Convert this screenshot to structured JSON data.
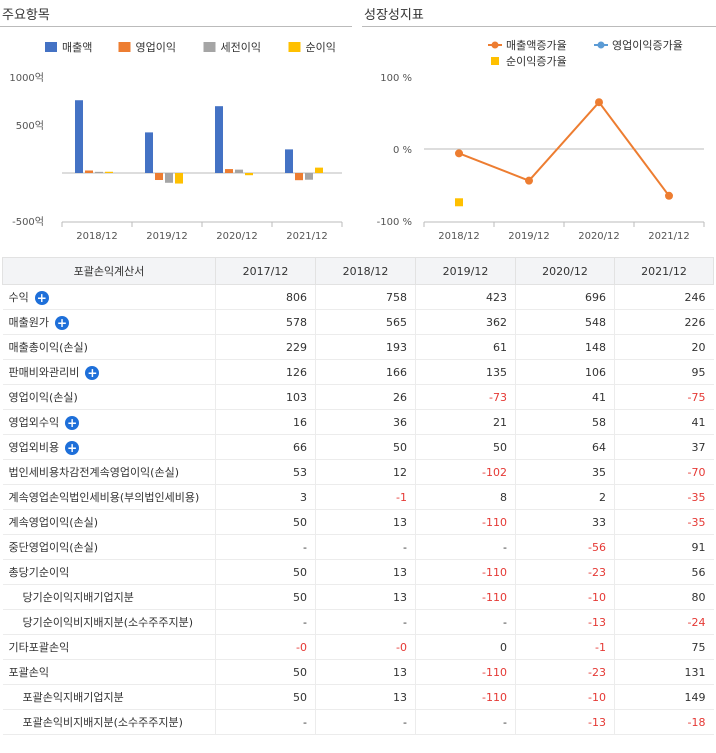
{
  "panels": {
    "left_title": "주요항목",
    "right_title": "성장성지표"
  },
  "chart_data": [
    {
      "type": "bar",
      "categories": [
        "2018/12",
        "2019/12",
        "2020/12",
        "2021/12"
      ],
      "series": [
        {
          "name": "매출액",
          "color": "#4472c4",
          "values": [
            758,
            423,
            696,
            246
          ]
        },
        {
          "name": "영업이익",
          "color": "#ed7d31",
          "values": [
            26,
            -73,
            41,
            -75
          ]
        },
        {
          "name": "세전이익",
          "color": "#a5a5a5",
          "values": [
            12,
            -102,
            35,
            -70
          ]
        },
        {
          "name": "순이익",
          "color": "#ffc000",
          "values": [
            13,
            -110,
            -23,
            56
          ]
        }
      ],
      "y_ticks": [
        "1000억",
        "500억",
        "-500억"
      ],
      "ylim": [
        -500,
        1000
      ]
    },
    {
      "type": "line",
      "categories": [
        "2018/12",
        "2019/12",
        "2020/12",
        "2021/12"
      ],
      "series": [
        {
          "name": "매출액증가율",
          "color": "#ed7d31",
          "values": [
            -6,
            -44,
            65,
            -65
          ]
        },
        {
          "name": "영업이익증가율",
          "color": "#5b9bd5",
          "values": [
            null,
            null,
            null,
            null
          ]
        },
        {
          "name": "순이익증가율",
          "color": "#ffc000",
          "values": [
            -74,
            null,
            null,
            null
          ]
        }
      ],
      "y_ticks": [
        "100 %",
        "0 %",
        "-100 %"
      ],
      "ylim": [
        -100,
        100
      ]
    }
  ],
  "table": {
    "header": [
      "포괄손익계산서",
      "2017/12",
      "2018/12",
      "2019/12",
      "2020/12",
      "2021/12"
    ],
    "rows": [
      {
        "label": "수익",
        "plus": true,
        "indent": false,
        "values": [
          "806",
          "758",
          "423",
          "696",
          "246"
        ]
      },
      {
        "label": "매출원가",
        "plus": true,
        "indent": false,
        "values": [
          "578",
          "565",
          "362",
          "548",
          "226"
        ]
      },
      {
        "label": "매출총이익(손실)",
        "plus": false,
        "indent": false,
        "values": [
          "229",
          "193",
          "61",
          "148",
          "20"
        ]
      },
      {
        "label": "판매비와관리비",
        "plus": true,
        "indent": false,
        "values": [
          "126",
          "166",
          "135",
          "106",
          "95"
        ]
      },
      {
        "label": "영업이익(손실)",
        "plus": false,
        "indent": false,
        "values": [
          "103",
          "26",
          "-73",
          "41",
          "-75"
        ]
      },
      {
        "label": "영업외수익",
        "plus": true,
        "indent": false,
        "values": [
          "16",
          "36",
          "21",
          "58",
          "41"
        ]
      },
      {
        "label": "영업외비용",
        "plus": true,
        "indent": false,
        "values": [
          "66",
          "50",
          "50",
          "64",
          "37"
        ]
      },
      {
        "label": "법인세비용차감전계속영업이익(손실)",
        "plus": false,
        "indent": false,
        "values": [
          "53",
          "12",
          "-102",
          "35",
          "-70"
        ]
      },
      {
        "label": "계속영업손익법인세비용(부의법인세비용)",
        "plus": false,
        "indent": false,
        "values": [
          "3",
          "-1",
          "8",
          "2",
          "-35"
        ]
      },
      {
        "label": "계속영업이익(손실)",
        "plus": false,
        "indent": false,
        "values": [
          "50",
          "13",
          "-110",
          "33",
          "-35"
        ]
      },
      {
        "label": "중단영업이익(손실)",
        "plus": false,
        "indent": false,
        "values": [
          "-",
          "-",
          "-",
          "-56",
          "91"
        ]
      },
      {
        "label": "총당기순이익",
        "plus": false,
        "indent": false,
        "values": [
          "50",
          "13",
          "-110",
          "-23",
          "56"
        ]
      },
      {
        "label": "당기순이익지배기업지분",
        "plus": false,
        "indent": true,
        "values": [
          "50",
          "13",
          "-110",
          "-10",
          "80"
        ]
      },
      {
        "label": "당기순이익비지배지분(소수주주지분)",
        "plus": false,
        "indent": true,
        "values": [
          "-",
          "-",
          "-",
          "-13",
          "-24"
        ]
      },
      {
        "label": "기타포괄손익",
        "plus": false,
        "indent": false,
        "values": [
          "-0",
          "-0",
          "0",
          "-1",
          "75"
        ]
      },
      {
        "label": "포괄손익",
        "plus": false,
        "indent": false,
        "values": [
          "50",
          "13",
          "-110",
          "-23",
          "131"
        ]
      },
      {
        "label": "포괄손익지배기업지분",
        "plus": false,
        "indent": true,
        "values": [
          "50",
          "13",
          "-110",
          "-10",
          "149"
        ]
      },
      {
        "label": "포괄손익비지배지분(소수주주지분)",
        "plus": false,
        "indent": true,
        "values": [
          "-",
          "-",
          "-",
          "-13",
          "-18"
        ]
      }
    ]
  }
}
